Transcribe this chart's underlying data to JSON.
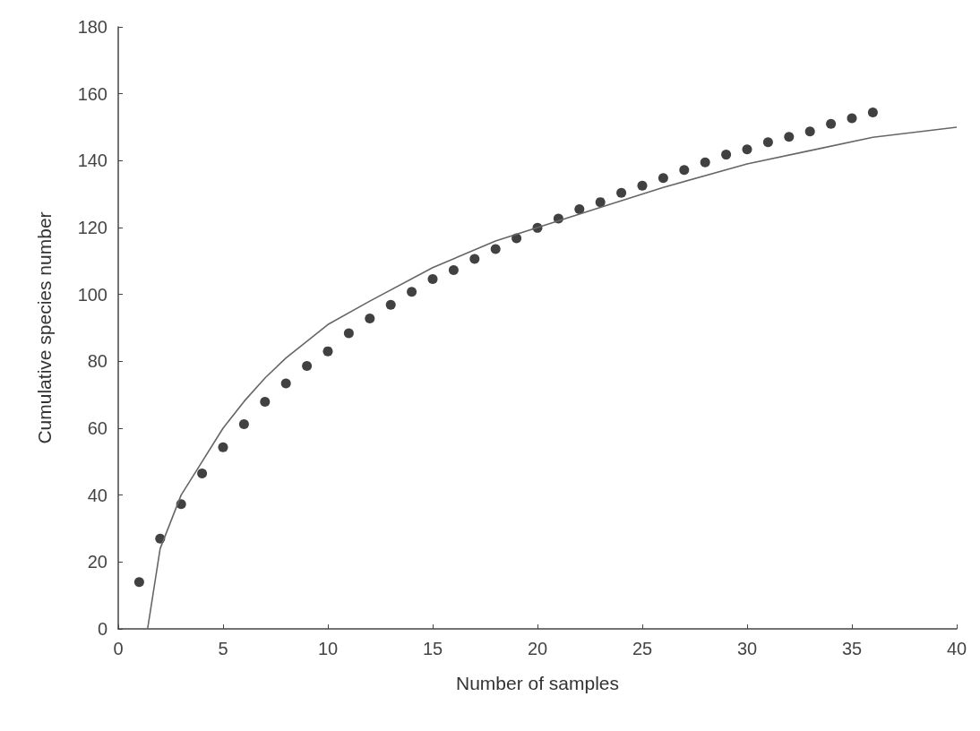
{
  "chart_data": {
    "type": "scatter",
    "xlabel": "Number of samples",
    "ylabel": "Cumulative species number",
    "xlim": [
      0,
      40
    ],
    "xticks": [
      0,
      5,
      10,
      15,
      20,
      25,
      30,
      35,
      40
    ],
    "ylim": [
      0,
      180
    ],
    "yticks": [
      0,
      20,
      40,
      60,
      80,
      100,
      120,
      140,
      160,
      180
    ],
    "grid": false,
    "marker": "circle",
    "series": [
      {
        "color": "#111111",
        "x": [
          1,
          2,
          3,
          4,
          5,
          6,
          7,
          8,
          9,
          10,
          11,
          12,
          13,
          14,
          15,
          16,
          17,
          18,
          19,
          20,
          21,
          22,
          23,
          24,
          25,
          26,
          27,
          28,
          29,
          30,
          31,
          32,
          33,
          34,
          35,
          36
        ],
        "values": [
          14,
          27,
          37.3,
          46.5,
          54.3,
          61.2,
          67.9,
          73.4,
          78.6,
          83,
          88.4,
          92.8,
          96.9,
          100.8,
          104.6,
          107.3,
          110.6,
          113.6,
          116.8,
          119.9,
          122.7,
          125.5,
          127.6,
          130.4,
          132.5,
          134.8,
          137.2,
          139.5,
          141.8,
          143.4,
          145.5,
          147.1,
          148.7,
          151,
          152.7,
          154.4
        ]
      },
      {
        "type": "line",
        "color": "#666666",
        "marker": "none",
        "line_style": "solid",
        "x": [
          1.4,
          1.6,
          2,
          3,
          4,
          5,
          6,
          7,
          8,
          10,
          12,
          15,
          18,
          20,
          23,
          26,
          30,
          33,
          36,
          40
        ],
        "values": [
          0,
          8,
          24,
          40,
          50,
          60,
          68,
          75,
          81,
          91,
          98,
          108,
          116,
          120,
          126,
          132,
          139,
          143,
          147,
          150
        ]
      }
    ]
  }
}
